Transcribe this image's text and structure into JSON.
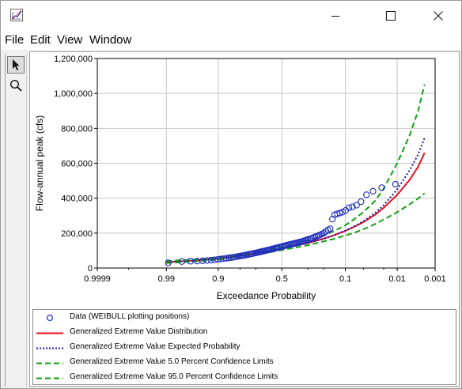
{
  "window": {
    "minimize_label": "—",
    "maximize_label": "☐",
    "close_label": "✕"
  },
  "menu": [
    "File",
    "Edit",
    "View",
    "Window"
  ],
  "tools": [
    {
      "icon": "arrow-pointer-icon",
      "active": true
    },
    {
      "icon": "magnifier-icon",
      "active": false
    }
  ],
  "colors": {
    "data": "#1f2dbf",
    "distribution": "#e8101c",
    "expected": "#1b1ba8",
    "confidence": "#12a012",
    "grid": "#c8c8c8"
  },
  "chart_data": {
    "type": "scatter",
    "xlabel": "Exceedance Probability",
    "ylabel": "Flow-annual peak (cfs)",
    "x_scale": "normal-probability (reversed)",
    "x_ticks": [
      0.9999,
      0.99,
      0.9,
      0.5,
      0.1,
      0.01,
      0.001
    ],
    "x_tick_labels": [
      "0.9999",
      "0.99",
      "0.9",
      "0.5",
      "0.1",
      "0.01",
      "0.001"
    ],
    "ylim": [
      0,
      1200000
    ],
    "y_ticks": [
      0,
      200000,
      400000,
      600000,
      800000,
      1000000,
      1200000
    ],
    "y_tick_labels": [
      "0",
      "200,000",
      "400,000",
      "600,000",
      "800,000",
      "1,000,000",
      "1,200,000"
    ],
    "grid": true,
    "legend_placement": "below",
    "series": [
      {
        "name": "Data (WEIBULL plotting positions)",
        "style": "circle",
        "color": "#1f2dbf",
        "x": [
          0.989,
          0.978,
          0.967,
          0.956,
          0.945,
          0.934,
          0.923,
          0.912,
          0.901,
          0.89,
          0.879,
          0.868,
          0.857,
          0.846,
          0.835,
          0.824,
          0.813,
          0.802,
          0.791,
          0.78,
          0.769,
          0.758,
          0.747,
          0.736,
          0.725,
          0.714,
          0.703,
          0.692,
          0.681,
          0.67,
          0.659,
          0.648,
          0.637,
          0.626,
          0.615,
          0.604,
          0.593,
          0.582,
          0.571,
          0.56,
          0.549,
          0.538,
          0.527,
          0.516,
          0.505,
          0.495,
          0.484,
          0.473,
          0.462,
          0.451,
          0.44,
          0.429,
          0.418,
          0.407,
          0.396,
          0.385,
          0.374,
          0.363,
          0.352,
          0.341,
          0.33,
          0.319,
          0.308,
          0.297,
          0.286,
          0.275,
          0.264,
          0.253,
          0.242,
          0.231,
          0.22,
          0.209,
          0.198,
          0.187,
          0.176,
          0.165,
          0.154,
          0.143,
          0.132,
          0.121,
          0.11,
          0.099,
          0.088,
          0.077,
          0.066,
          0.055,
          0.044,
          0.033,
          0.022,
          0.011
        ],
        "y": [
          30000,
          37000,
          39000,
          40000,
          41000,
          43000,
          45000,
          47000,
          50000,
          52000,
          54000,
          56000,
          58000,
          60000,
          62000,
          64000,
          66000,
          68000,
          70000,
          72000,
          74000,
          76000,
          78000,
          80000,
          82000,
          84000,
          86000,
          88000,
          90000,
          92000,
          94000,
          96000,
          98000,
          100000,
          102000,
          104000,
          106000,
          108000,
          110000,
          112000,
          114000,
          116000,
          118000,
          120000,
          122000,
          124000,
          126000,
          128000,
          130000,
          132000,
          134000,
          136000,
          138000,
          140000,
          142000,
          144000,
          146000,
          148000,
          150000,
          152000,
          155000,
          158000,
          161000,
          164000,
          167000,
          170000,
          174000,
          178000,
          182000,
          186000,
          190000,
          195000,
          200000,
          210000,
          218000,
          225000,
          280000,
          305000,
          310000,
          315000,
          320000,
          330000,
          345000,
          350000,
          360000,
          380000,
          420000,
          440000,
          460000,
          480000
        ]
      },
      {
        "name": "Generalized Extreme Value Distribution",
        "style": "solid",
        "color": "#e8101c",
        "x": [
          0.99,
          0.95,
          0.9,
          0.8,
          0.7,
          0.6,
          0.5,
          0.4,
          0.3,
          0.2,
          0.15,
          0.1,
          0.07,
          0.05,
          0.03,
          0.02,
          0.01,
          0.005,
          0.003,
          0.002
        ],
        "y": [
          34000,
          45000,
          55000,
          70000,
          85000,
          98000,
          112000,
          126000,
          143000,
          168000,
          186000,
          213000,
          238000,
          263000,
          305000,
          345000,
          420000,
          505000,
          580000,
          660000
        ]
      },
      {
        "name": "Generalized Extreme Value Expected Probability",
        "style": "dotted",
        "color": "#1b1ba8",
        "x": [
          0.99,
          0.95,
          0.9,
          0.8,
          0.7,
          0.6,
          0.5,
          0.4,
          0.3,
          0.2,
          0.15,
          0.1,
          0.07,
          0.05,
          0.03,
          0.02,
          0.01,
          0.005,
          0.003,
          0.002
        ],
        "y": [
          34000,
          45000,
          55000,
          70000,
          85000,
          98000,
          112000,
          126000,
          143000,
          168000,
          186000,
          214000,
          241000,
          268000,
          315000,
          360000,
          450000,
          560000,
          650000,
          745000
        ]
      },
      {
        "name": "Generalized Extreme Value 5.0 Percent Confidence Limits",
        "style": "dashed",
        "color": "#12a012",
        "x": [
          0.99,
          0.95,
          0.9,
          0.8,
          0.7,
          0.6,
          0.5,
          0.4,
          0.3,
          0.2,
          0.15,
          0.1,
          0.07,
          0.05,
          0.03,
          0.02,
          0.01,
          0.005,
          0.003,
          0.002
        ],
        "y": [
          40000,
          51000,
          61000,
          77000,
          92000,
          106000,
          121000,
          137000,
          157000,
          187000,
          210000,
          245000,
          283000,
          320000,
          385000,
          455000,
          600000,
          760000,
          900000,
          1050000
        ]
      },
      {
        "name": "Generalized Extreme Value 95.0 Percent Confidence Limits",
        "style": "dashed",
        "color": "#12a012",
        "x": [
          0.99,
          0.95,
          0.9,
          0.8,
          0.7,
          0.6,
          0.5,
          0.4,
          0.3,
          0.2,
          0.15,
          0.1,
          0.07,
          0.05,
          0.03,
          0.02,
          0.01,
          0.005,
          0.003,
          0.002
        ],
        "y": [
          28000,
          39000,
          49000,
          63000,
          77000,
          90000,
          103000,
          116000,
          131000,
          152000,
          166000,
          186000,
          204000,
          222000,
          252000,
          278000,
          320000,
          365000,
          398000,
          428000
        ]
      }
    ]
  }
}
